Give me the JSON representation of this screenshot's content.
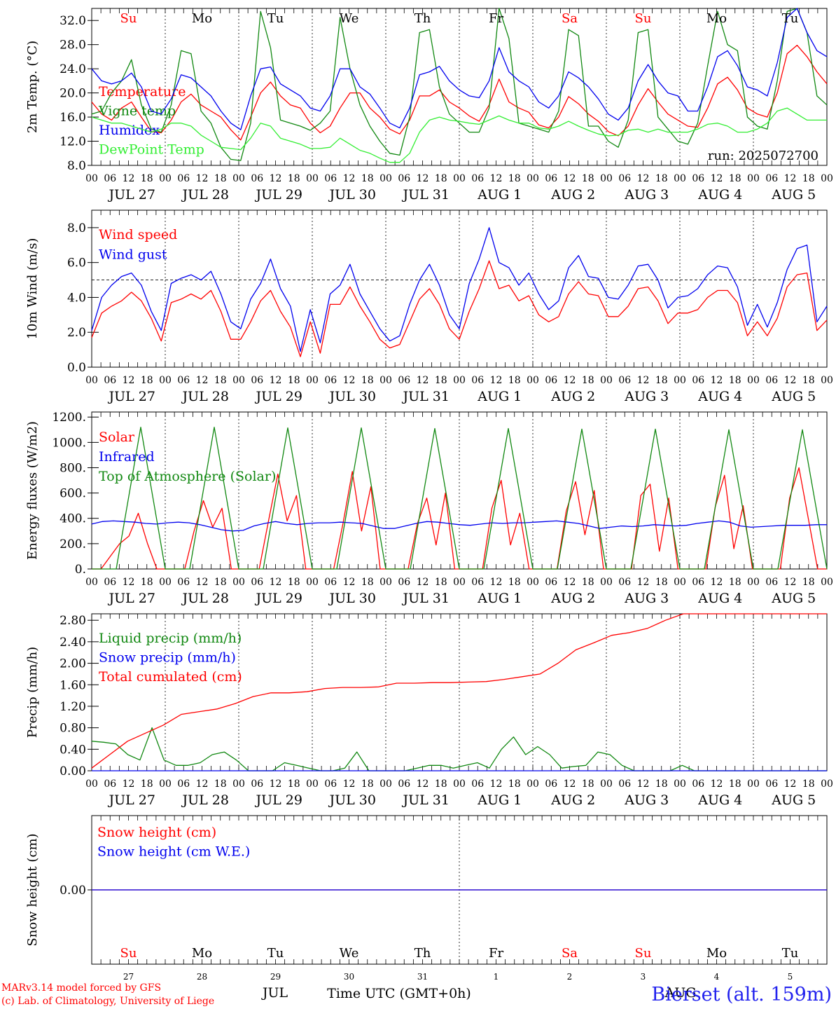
{
  "chart_data": [
    {
      "type": "line",
      "ylabel": "2m Temp. (°C)",
      "ylim": [
        8,
        34
      ],
      "yticks": [
        8,
        12,
        16,
        20,
        24,
        28,
        32
      ],
      "ytick_labels": [
        "8.0",
        "12.0",
        "16.0",
        "20.0",
        "24.0",
        "28.0",
        "32.0"
      ],
      "weekdays": [
        "Su",
        "Mo",
        "Tu",
        "We",
        "Th",
        "Fr",
        "Sa",
        "Su",
        "Mo",
        "Tu"
      ],
      "weekday_colors": [
        "#ff0000",
        "#000000",
        "#000000",
        "#000000",
        "#000000",
        "#000000",
        "#ff0000",
        "#ff0000",
        "#000000",
        "#000000"
      ],
      "run_label": "run: 2025072700",
      "grid": false,
      "legend_position": "left",
      "series": [
        {
          "name": "Temperature",
          "color": "#ff0000",
          "values": [
            18.5,
            16.5,
            15.5,
            17.5,
            18.5,
            16,
            13.6,
            13.4,
            15.5,
            18.5,
            19.8,
            18,
            17,
            16,
            13.9,
            12.2,
            16,
            20,
            21.8,
            19.5,
            18,
            17.5,
            15,
            13.4,
            14.5,
            17.5,
            20,
            20,
            17.5,
            16,
            14,
            13.2,
            15.5,
            19.5,
            19.5,
            20.5,
            18.5,
            17.5,
            16.2,
            15.3,
            18,
            22.3,
            18.5,
            17.5,
            16.8,
            14.7,
            14.2,
            16,
            19.4,
            18.2,
            16.5,
            15.3,
            13.6,
            12.9,
            14.5,
            18,
            20.7,
            18.5,
            16.5,
            15.5,
            14.5,
            14.3,
            17.5,
            21.5,
            22.6,
            20.5,
            17.5,
            16.5,
            16,
            20,
            26.5,
            27.9,
            26,
            23.5,
            21.5
          ]
        },
        {
          "name": "Vigne temp",
          "color": "#118811",
          "values": [
            16.5,
            17,
            20,
            22,
            25.5,
            18,
            14,
            13.5,
            18,
            27,
            26.5,
            17,
            15,
            11,
            9,
            8.8,
            15,
            33.5,
            27.5,
            15.5,
            15,
            14.5,
            13.8,
            15,
            17,
            32.5,
            24,
            18,
            14.5,
            12,
            10,
            9.7,
            16,
            30,
            30.5,
            21,
            16.5,
            15,
            13.5,
            13.5,
            17.5,
            34,
            29,
            15,
            14.5,
            14,
            13.5,
            17,
            30.5,
            29.5,
            14.5,
            14.5,
            12,
            11,
            15.5,
            30,
            30.5,
            16,
            14,
            12,
            11.5,
            15,
            24.5,
            33.5,
            28,
            27,
            16,
            14.5,
            14,
            22,
            33.5,
            34,
            30,
            19.5,
            18
          ]
        },
        {
          "name": "Humidex",
          "color": "#0000ee",
          "values": [
            24,
            22,
            21.5,
            22,
            23.3,
            21,
            17,
            16.5,
            19,
            23,
            22.5,
            21,
            19.5,
            17,
            15,
            13.9,
            19.5,
            24,
            24.3,
            21.5,
            20.5,
            19.5,
            17.5,
            17,
            19.5,
            24,
            24,
            21,
            19.8,
            17.5,
            15,
            14.2,
            17.5,
            23,
            23.5,
            24.4,
            22,
            20.5,
            19.5,
            19.2,
            22,
            27.5,
            23.5,
            22,
            21,
            18.5,
            17.5,
            19.5,
            23.5,
            22.5,
            21,
            19,
            16.5,
            15.5,
            17.5,
            22,
            24.7,
            22,
            20,
            19.5,
            17,
            17,
            21,
            26,
            27,
            24.5,
            21,
            20.5,
            19.5,
            25,
            32.5,
            34,
            30,
            27,
            26
          ]
        },
        {
          "name": "DewPoint Temp",
          "color": "#33ee33",
          "values": [
            16,
            15.5,
            15,
            15,
            14.5,
            14,
            13.5,
            14,
            15,
            15,
            14.5,
            13,
            12,
            11,
            10.8,
            10.6,
            12.5,
            15,
            14.5,
            12.5,
            12,
            11.5,
            10.8,
            10.8,
            11,
            12.5,
            11.5,
            10.5,
            10,
            9.2,
            8.5,
            8.5,
            10,
            13.5,
            15.5,
            16,
            15.5,
            15.3,
            15,
            14.8,
            15.5,
            16.2,
            15.5,
            15,
            15,
            14.2,
            14,
            14.5,
            15.3,
            14.5,
            13.8,
            13.2,
            12.9,
            13,
            13.8,
            14,
            13.5,
            14,
            13.5,
            13.5,
            13.5,
            14,
            14.8,
            15,
            14.5,
            13.5,
            13.5,
            14,
            15,
            17,
            17.5,
            16.5,
            15.5,
            15.5,
            15.5
          ]
        }
      ]
    },
    {
      "type": "line",
      "ylabel": "10m Wind (m/s)",
      "ylim": [
        0,
        9
      ],
      "yticks": [
        0,
        2,
        4,
        6,
        8
      ],
      "ytick_labels": [
        "0.0",
        "2.0",
        "4.0",
        "6.0",
        "8.0"
      ],
      "reference_line": 5,
      "grid": false,
      "legend_position": "left",
      "series": [
        {
          "name": "Wind speed",
          "color": "#ff0000",
          "values": [
            1.7,
            3.1,
            3.5,
            3.8,
            4.3,
            3.8,
            2.8,
            1.5,
            3.7,
            3.9,
            4.2,
            3.9,
            4.4,
            3.2,
            1.6,
            1.6,
            2.6,
            3.8,
            4.4,
            3.2,
            2.3,
            0.6,
            2.6,
            0.8,
            3.6,
            3.6,
            4.6,
            3.5,
            2.6,
            1.6,
            1.1,
            1.3,
            2.6,
            3.9,
            4.5,
            3.6,
            2.2,
            1.6,
            3.2,
            4.5,
            6.1,
            4.5,
            4.7,
            3.8,
            4.1,
            3,
            2.6,
            2.9,
            4.2,
            4.9,
            4.2,
            4.1,
            2.9,
            2.9,
            3.5,
            4.5,
            4.6,
            3.8,
            2.5,
            3.1,
            3.1,
            3.3,
            4,
            4.4,
            4.4,
            3.7,
            1.8,
            2.6,
            1.8,
            2.8,
            4.6,
            5.3,
            5.4,
            2.1,
            2.7
          ]
        },
        {
          "name": "Wind gust",
          "color": "#0000ee",
          "values": [
            2.1,
            4,
            4.7,
            5.2,
            5.4,
            4.7,
            3.2,
            2.1,
            4.8,
            5.1,
            5.3,
            5,
            5.5,
            4.2,
            2.6,
            2.2,
            3.9,
            4.8,
            6.2,
            4.5,
            3.5,
            0.9,
            3.3,
            1.4,
            4.2,
            4.7,
            5.9,
            4.2,
            3.2,
            2.2,
            1.5,
            1.8,
            3.6,
            5,
            5.9,
            4.7,
            3,
            2.2,
            4.8,
            6.2,
            8,
            6,
            5.7,
            4.7,
            5.4,
            4.2,
            3.3,
            3.8,
            5.7,
            6.4,
            5.2,
            5.1,
            4,
            3.9,
            4.7,
            5.8,
            5.9,
            5,
            3.4,
            4,
            4.1,
            4.5,
            5.3,
            5.8,
            5.7,
            4.6,
            2.4,
            3.6,
            2.3,
            3.7,
            5.6,
            6.8,
            7,
            2.6,
            3.5
          ]
        }
      ]
    },
    {
      "type": "line",
      "ylabel": "Energy fluxes (W/m2)",
      "ylim": [
        0,
        1240
      ],
      "yticks": [
        0,
        200,
        400,
        600,
        800,
        1000,
        1200
      ],
      "ytick_labels": [
        "0.",
        "200.",
        "400.",
        "600.",
        "800.",
        "1000.",
        "1200."
      ],
      "grid": false,
      "legend_position": "left",
      "series": [
        {
          "name": "Solar",
          "color": "#ff0000",
          "values": [
            0,
            0,
            100,
            200,
            260,
            440,
            200,
            0,
            0,
            0,
            0,
            300,
            540,
            330,
            480,
            0,
            0,
            0,
            0,
            380,
            750,
            380,
            580,
            0,
            0,
            0,
            0,
            360,
            770,
            300,
            650,
            0,
            0,
            0,
            0,
            360,
            560,
            190,
            600,
            0,
            0,
            0,
            0,
            480,
            700,
            190,
            440,
            0,
            0,
            0,
            0,
            460,
            690,
            270,
            620,
            0,
            0,
            0,
            0,
            580,
            670,
            140,
            560,
            0,
            0,
            0,
            0,
            490,
            740,
            160,
            500,
            0,
            0,
            0,
            0,
            560,
            800,
            400,
            0,
            0
          ]
        },
        {
          "name": "Infrared",
          "color": "#0000ee",
          "values": [
            355,
            375,
            380,
            375,
            370,
            360,
            355,
            365,
            370,
            365,
            350,
            330,
            310,
            300,
            305,
            340,
            360,
            375,
            360,
            350,
            360,
            365,
            365,
            370,
            365,
            360,
            340,
            320,
            320,
            340,
            360,
            375,
            370,
            360,
            350,
            345,
            355,
            365,
            360,
            365,
            365,
            370,
            375,
            380,
            370,
            360,
            340,
            320,
            330,
            340,
            335,
            340,
            350,
            345,
            340,
            345,
            360,
            370,
            380,
            370,
            340,
            330,
            335,
            340,
            345,
            345,
            345,
            350,
            350
          ]
        },
        {
          "name": "Top of Atmosphere (Solar)",
          "color": "#118811",
          "values": [
            0,
            0,
            1120,
            0,
            0,
            1120,
            0,
            0,
            1115,
            0,
            0,
            1115,
            0,
            0,
            1110,
            0,
            0,
            1110,
            0,
            0,
            1105,
            0,
            0,
            1105,
            0,
            0,
            1100,
            0,
            0,
            1100,
            0
          ]
        }
      ]
    },
    {
      "type": "line",
      "ylabel": "Precip (mm/h)",
      "ylim": [
        0,
        2.92
      ],
      "yticks": [
        0,
        0.4,
        0.8,
        1.2,
        1.6,
        2,
        2.4,
        2.8
      ],
      "ytick_labels": [
        "0.00",
        "0.40",
        "0.80",
        "1.20",
        "1.60",
        "2.00",
        "2.40",
        "2.80"
      ],
      "grid": false,
      "legend_position": "left",
      "series": [
        {
          "name": "Liquid precip (mm/h)",
          "color": "#118811",
          "values": [
            0.55,
            0.53,
            0.5,
            0.3,
            0.2,
            0.8,
            0.2,
            0.1,
            0.1,
            0.15,
            0.3,
            0.35,
            0.2,
            0,
            0,
            0,
            0.15,
            0.1,
            0.05,
            0,
            0,
            0.05,
            0.35,
            0,
            0,
            0,
            0,
            0.05,
            0.1,
            0.1,
            0.05,
            0.1,
            0.15,
            0.05,
            0.4,
            0.63,
            0.3,
            0.45,
            0.3,
            0.05,
            0.08,
            0.1,
            0.35,
            0.3,
            0.1,
            0,
            0,
            0,
            0,
            0.1,
            0,
            0,
            0,
            0,
            0,
            0,
            0,
            0,
            0,
            0,
            0,
            0
          ]
        },
        {
          "name": "Snow precip (mm/h)",
          "color": "#0000ee",
          "values": [
            0,
            0
          ]
        },
        {
          "name": "Total cumulated (cm)",
          "color": "#ff0000",
          "values": [
            0.05,
            0.3,
            0.55,
            0.7,
            0.85,
            1.05,
            1.1,
            1.15,
            1.25,
            1.38,
            1.45,
            1.45,
            1.47,
            1.53,
            1.55,
            1.55,
            1.56,
            1.63,
            1.63,
            1.64,
            1.64,
            1.65,
            1.66,
            1.7,
            1.75,
            1.8,
            2,
            2.25,
            2.38,
            2.52,
            2.57,
            2.65,
            2.8,
            2.93,
            2.94,
            2.95,
            2.98,
            2.98,
            2.98,
            2.98,
            2.98,
            2.98
          ]
        }
      ]
    },
    {
      "type": "line",
      "ylabel": "Snow height (cm)",
      "ylim": [
        -1,
        1
      ],
      "yticks": [
        0
      ],
      "ytick_labels": [
        "0.00"
      ],
      "grid": false,
      "legend_position": "left",
      "series": [
        {
          "name": "Snow height (cm)",
          "color": "#ff0000",
          "values": [
            0,
            0
          ]
        },
        {
          "name": "Snow height (cm W.E.)",
          "color": "#0000ee",
          "values": [
            0,
            0
          ]
        }
      ]
    }
  ],
  "x_axis": {
    "hour_labels": [
      "00",
      "06",
      "12",
      "18"
    ],
    "end_label": "00",
    "dates": [
      "JUL 27",
      "JUL 28",
      "JUL 29",
      "JUL 30",
      "JUL 31",
      "AUG  1",
      "AUG  2",
      "AUG  3",
      "AUG  4",
      "AUG  5"
    ],
    "day_numbers": [
      "27",
      "28",
      "29",
      "30",
      "31",
      "1",
      "2",
      "3",
      "4",
      "5"
    ],
    "month_left": "JUL",
    "month_right": "AUG",
    "axis_title": "Time UTC (GMT+0h)"
  },
  "footer": {
    "credit_line1": "MARv3.14 model forced by GFS",
    "credit_line2": "(c) Lab. of Climatology, University of Liege",
    "station": "Bierset (alt. 159m)"
  },
  "colors": {
    "red": "#ff0000",
    "black": "#000000",
    "blue": "#2222ee"
  }
}
